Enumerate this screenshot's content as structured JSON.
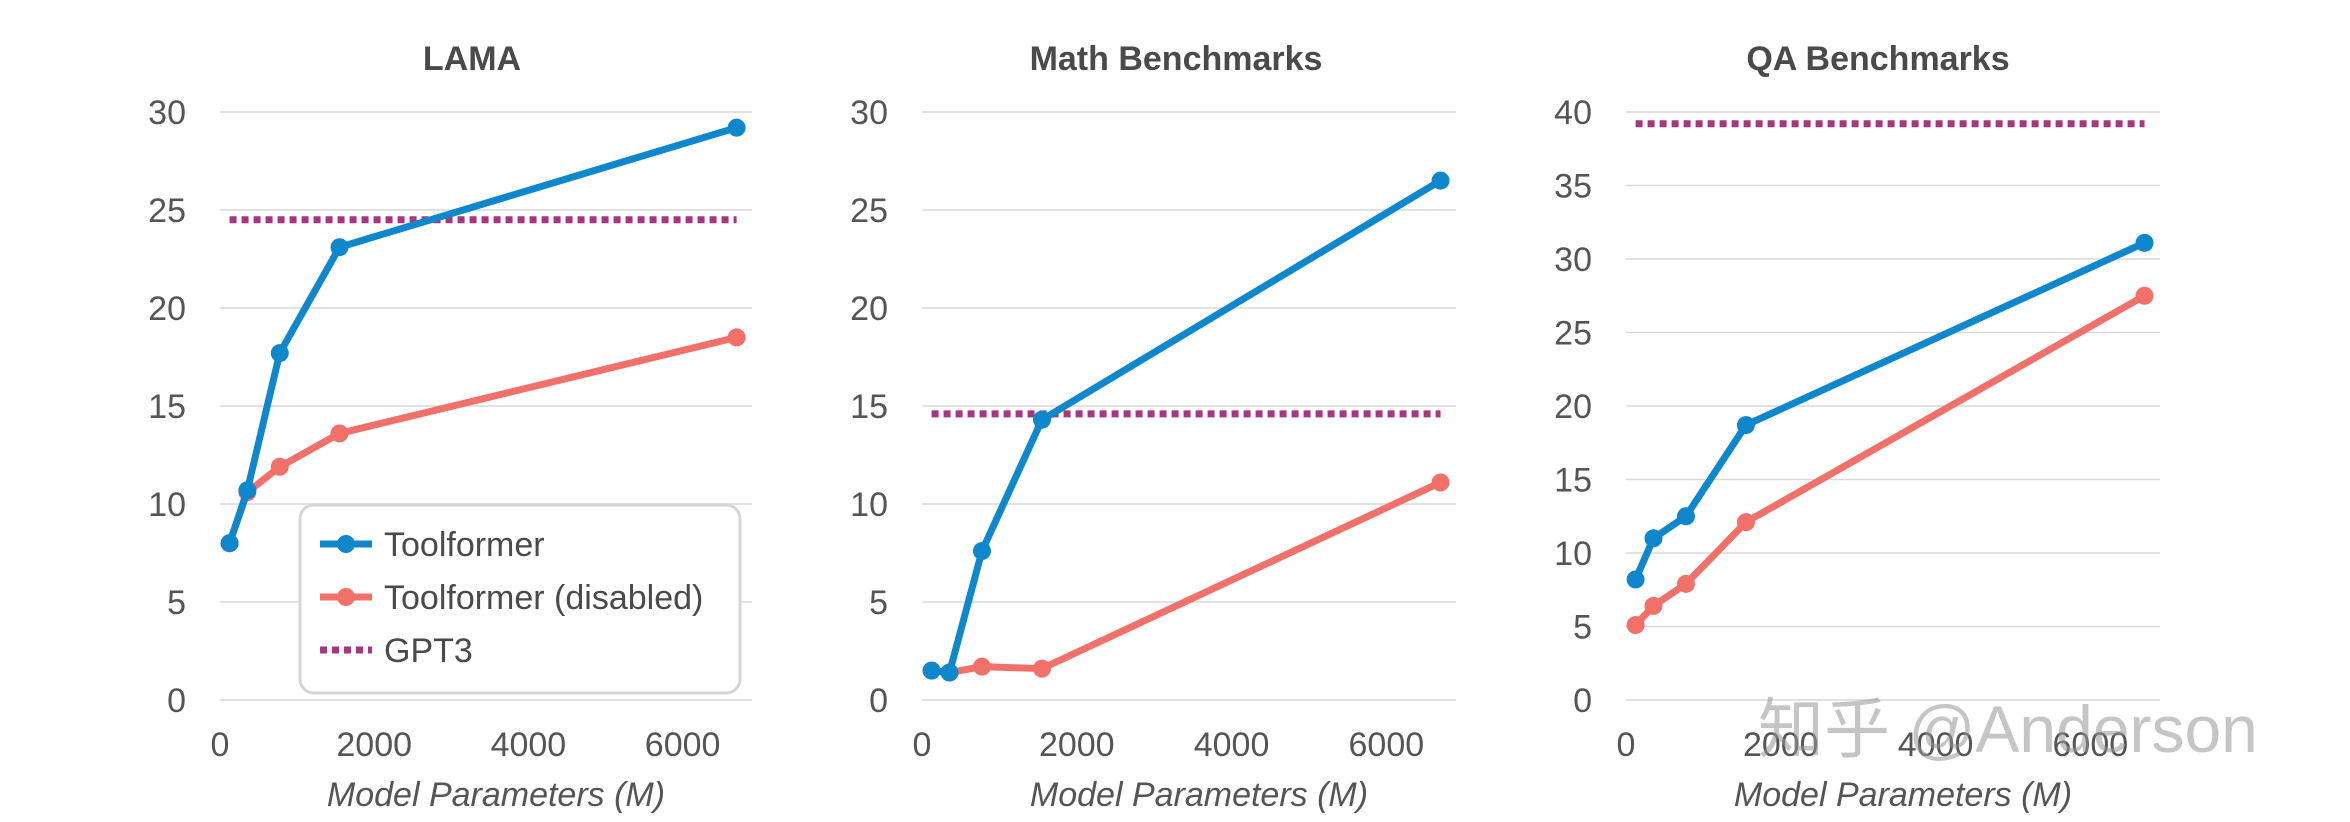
{
  "colors": {
    "toolformer": "#0e87cc",
    "toolformer_disabled": "#f2706a",
    "gpt3": "#a8367e",
    "grid": "#d9d9d9",
    "text": "#555555"
  },
  "legend": {
    "items": [
      {
        "label": "Toolformer",
        "color": "#0e87cc",
        "style": "line-marker"
      },
      {
        "label": "Toolformer (disabled)",
        "color": "#f2706a",
        "style": "line-marker"
      },
      {
        "label": "GPT3",
        "color": "#a8367e",
        "style": "dotted"
      }
    ]
  },
  "watermark": {
    "text": "知乎 @Anderson"
  },
  "chart_data": [
    {
      "type": "line",
      "title": "LAMA",
      "xlabel": "Model Parameters (M)",
      "ylabel": "",
      "xlim": [
        0,
        6900
      ],
      "ylim": [
        0,
        30
      ],
      "xticks": [
        0,
        2000,
        4000,
        6000
      ],
      "yticks": [
        0,
        5,
        10,
        15,
        20,
        25,
        30
      ],
      "grid": "horizontal",
      "legend": "bottom-right",
      "series": [
        {
          "name": "Toolformer",
          "x": [
            124,
            355,
            775,
            1550,
            6700
          ],
          "y": [
            8,
            10.7,
            17.7,
            23.1,
            29.2
          ]
        },
        {
          "name": "Toolformer (disabled)",
          "x": [
            124,
            355,
            775,
            1550,
            6700
          ],
          "y": [
            8,
            10.6,
            11.9,
            13.6,
            18.5
          ]
        },
        {
          "name": "GPT3",
          "x": [
            124,
            6700
          ],
          "y": [
            24.5,
            24.5
          ],
          "style": "dotted"
        }
      ]
    },
    {
      "type": "line",
      "title": "Math Benchmarks",
      "xlabel": "Model Parameters (M)",
      "ylabel": "",
      "xlim": [
        0,
        6900
      ],
      "ylim": [
        0,
        30
      ],
      "xticks": [
        0,
        2000,
        4000,
        6000
      ],
      "yticks": [
        0,
        5,
        10,
        15,
        20,
        25,
        30
      ],
      "grid": "horizontal",
      "series": [
        {
          "name": "Toolformer",
          "x": [
            124,
            355,
            775,
            1550,
            6700
          ],
          "y": [
            1.5,
            1.4,
            7.6,
            14.3,
            26.5
          ]
        },
        {
          "name": "Toolformer (disabled)",
          "x": [
            124,
            355,
            775,
            1550,
            6700
          ],
          "y": [
            1.5,
            1.4,
            1.7,
            1.6,
            11.1
          ]
        },
        {
          "name": "GPT3",
          "x": [
            124,
            6700
          ],
          "y": [
            14.6,
            14.6
          ],
          "style": "dotted"
        }
      ]
    },
    {
      "type": "line",
      "title": "QA Benchmarks",
      "xlabel": "Model Parameters (M)",
      "ylabel": "",
      "xlim": [
        0,
        6900
      ],
      "ylim": [
        0,
        40
      ],
      "xticks": [
        0,
        2000,
        4000,
        6000
      ],
      "yticks": [
        0,
        5,
        10,
        15,
        20,
        25,
        30,
        35,
        40
      ],
      "grid": "horizontal",
      "series": [
        {
          "name": "Toolformer",
          "x": [
            124,
            355,
            775,
            1550,
            6700
          ],
          "y": [
            8.2,
            11,
            12.5,
            18.7,
            31.1
          ]
        },
        {
          "name": "Toolformer (disabled)",
          "x": [
            124,
            355,
            775,
            1550,
            6700
          ],
          "y": [
            5.1,
            6.4,
            7.9,
            12.1,
            27.5
          ]
        },
        {
          "name": "GPT3",
          "x": [
            124,
            6700
          ],
          "y": [
            39.2,
            39.2
          ],
          "style": "dotted"
        }
      ]
    }
  ]
}
